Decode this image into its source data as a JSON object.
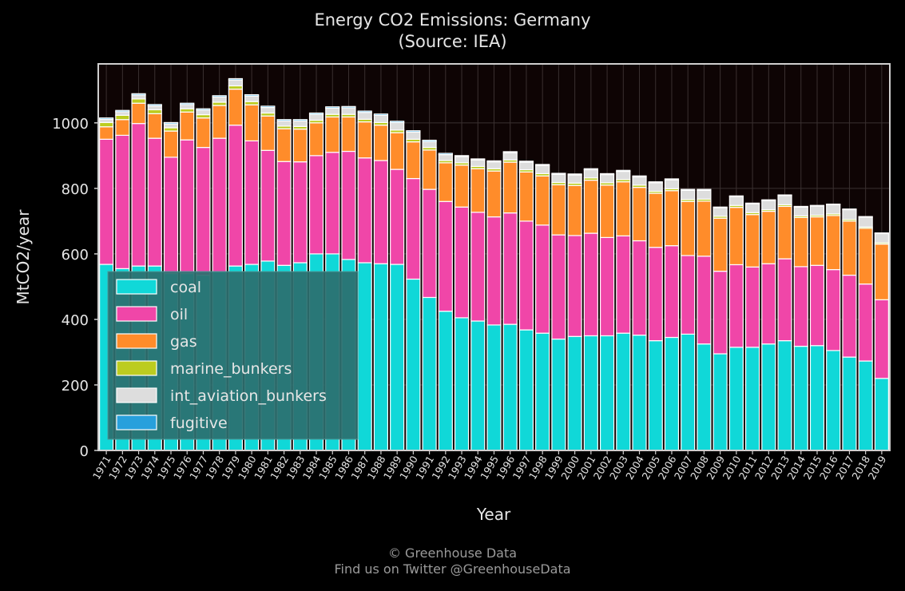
{
  "title": "Energy CO2 Emissions: Germany",
  "subtitle": "(Source: IEA)",
  "footer": {
    "line1": "© Greenhouse Data",
    "line2": "Find us on Twitter @GreenhouseData"
  },
  "chart_data": {
    "type": "bar",
    "stacked": true,
    "xlabel": "Year",
    "ylabel": "MtCO2/year",
    "ylim": [
      0,
      1180
    ],
    "yticks": [
      0,
      200,
      400,
      600,
      800,
      1000
    ],
    "grid": true,
    "legend_position": "lower-left",
    "categories": [
      "1971",
      "1972",
      "1973",
      "1974",
      "1975",
      "1976",
      "1977",
      "1978",
      "1979",
      "1980",
      "1981",
      "1982",
      "1983",
      "1984",
      "1985",
      "1986",
      "1987",
      "1988",
      "1989",
      "1990",
      "1991",
      "1992",
      "1993",
      "1994",
      "1995",
      "1996",
      "1997",
      "1998",
      "1999",
      "2000",
      "2001",
      "2002",
      "2003",
      "2004",
      "2005",
      "2006",
      "2007",
      "2008",
      "2009",
      "2010",
      "2011",
      "2012",
      "2013",
      "2014",
      "2015",
      "2016",
      "2017",
      "2018",
      "2019"
    ],
    "series": [
      {
        "name": "coal",
        "color": "#10d8d8",
        "values": [
          568,
          555,
          563,
          563,
          540,
          540,
          535,
          545,
          563,
          568,
          578,
          565,
          573,
          600,
          600,
          583,
          573,
          570,
          568,
          523,
          467,
          425,
          405,
          395,
          383,
          385,
          368,
          358,
          340,
          348,
          350,
          350,
          358,
          352,
          335,
          345,
          355,
          325,
          295,
          315,
          315,
          325,
          335,
          318,
          320,
          305,
          285,
          273,
          220
        ]
      },
      {
        "name": "oil",
        "color": "#f046a8",
        "values": [
          382,
          407,
          435,
          390,
          355,
          408,
          390,
          408,
          430,
          377,
          338,
          317,
          308,
          300,
          310,
          330,
          320,
          315,
          290,
          307,
          330,
          335,
          338,
          332,
          330,
          340,
          332,
          330,
          318,
          308,
          313,
          300,
          297,
          288,
          285,
          280,
          240,
          268,
          252,
          252,
          245,
          245,
          250,
          243,
          245,
          247,
          250,
          235,
          240
        ]
      },
      {
        "name": "gas",
        "color": "#ff8c2a",
        "values": [
          38,
          48,
          62,
          75,
          80,
          85,
          90,
          100,
          110,
          110,
          105,
          100,
          100,
          100,
          108,
          105,
          110,
          108,
          112,
          112,
          120,
          118,
          128,
          133,
          140,
          155,
          150,
          150,
          153,
          153,
          162,
          160,
          165,
          163,
          165,
          168,
          165,
          168,
          162,
          175,
          160,
          160,
          160,
          150,
          148,
          165,
          165,
          170,
          170
        ]
      },
      {
        "name": "marine_bunkers",
        "color": "#bccc20",
        "values": [
          13,
          13,
          13,
          12,
          10,
          10,
          10,
          10,
          10,
          10,
          9,
          8,
          8,
          8,
          8,
          8,
          8,
          8,
          8,
          8,
          8,
          7,
          7,
          7,
          7,
          7,
          7,
          7,
          7,
          7,
          7,
          7,
          7,
          7,
          6,
          6,
          6,
          6,
          6,
          6,
          6,
          5,
          5,
          5,
          5,
          5,
          5,
          4,
          4
        ]
      },
      {
        "name": "int_aviation_bunkers",
        "color": "#dddddd",
        "values": [
          10,
          11,
          12,
          12,
          12,
          13,
          14,
          16,
          18,
          17,
          17,
          16,
          17,
          18,
          19,
          20,
          21,
          22,
          23,
          22,
          18,
          18,
          19,
          20,
          21,
          22,
          23,
          25,
          25,
          25,
          25,
          25,
          25,
          25,
          26,
          27,
          28,
          27,
          26,
          27,
          27,
          28,
          28,
          27,
          28,
          28,
          30,
          30,
          28
        ]
      },
      {
        "name": "fugitive",
        "color": "#28a0dc",
        "values": [
          4,
          4,
          4,
          4,
          4,
          4,
          4,
          4,
          4,
          4,
          4,
          4,
          4,
          4,
          4,
          4,
          4,
          4,
          4,
          4,
          4,
          4,
          3,
          3,
          3,
          3,
          3,
          3,
          3,
          3,
          3,
          3,
          3,
          3,
          3,
          3,
          3,
          3,
          2,
          2,
          2,
          2,
          2,
          2,
          2,
          2,
          2,
          2,
          2
        ]
      }
    ]
  }
}
